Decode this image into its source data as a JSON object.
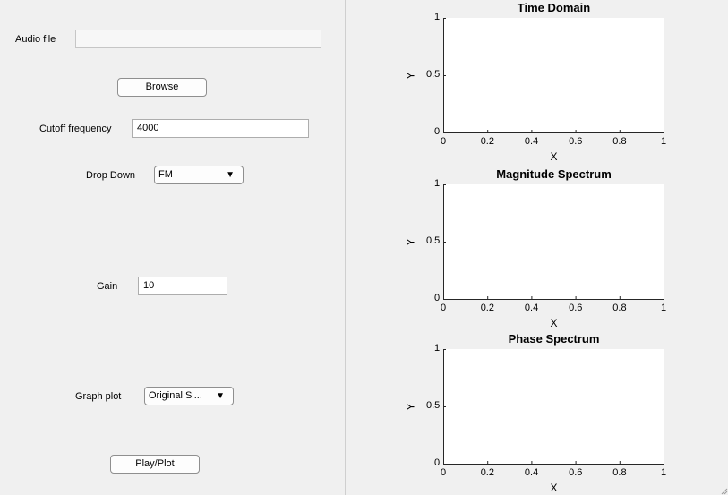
{
  "controls": {
    "audio_file_label": "Audio file",
    "audio_file_value": "",
    "browse_label": "Browse",
    "cutoff_label": "Cutoff frequency",
    "cutoff_value": "4000",
    "dropdown_label": "Drop Down",
    "dropdown_value": "FM",
    "gain_label": "Gain",
    "gain_value": "10",
    "graph_plot_label": "Graph plot",
    "graph_plot_value": "Original Si...",
    "play_label": "Play/Plot"
  },
  "icons": {
    "dropdown_arrow": "triangle-down",
    "resize_grip": "resize-grip-icon"
  },
  "plots": [
    {
      "title": "Time Domain",
      "xlabel": "X",
      "ylabel": "Y",
      "xticks": [
        "0",
        "0.2",
        "0.4",
        "0.6",
        "0.8",
        "1"
      ],
      "yticks": [
        "0",
        "0.5",
        "1"
      ]
    },
    {
      "title": "Magnitude Spectrum",
      "xlabel": "X",
      "ylabel": "Y",
      "xticks": [
        "0",
        "0.2",
        "0.4",
        "0.6",
        "0.8",
        "1"
      ],
      "yticks": [
        "0",
        "0.5",
        "1"
      ]
    },
    {
      "title": "Phase Spectrum",
      "xlabel": "X",
      "ylabel": "Y",
      "xticks": [
        "0",
        "0.2",
        "0.4",
        "0.6",
        "0.8",
        "1"
      ],
      "yticks": [
        "0",
        "0.5",
        "1"
      ]
    }
  ]
}
